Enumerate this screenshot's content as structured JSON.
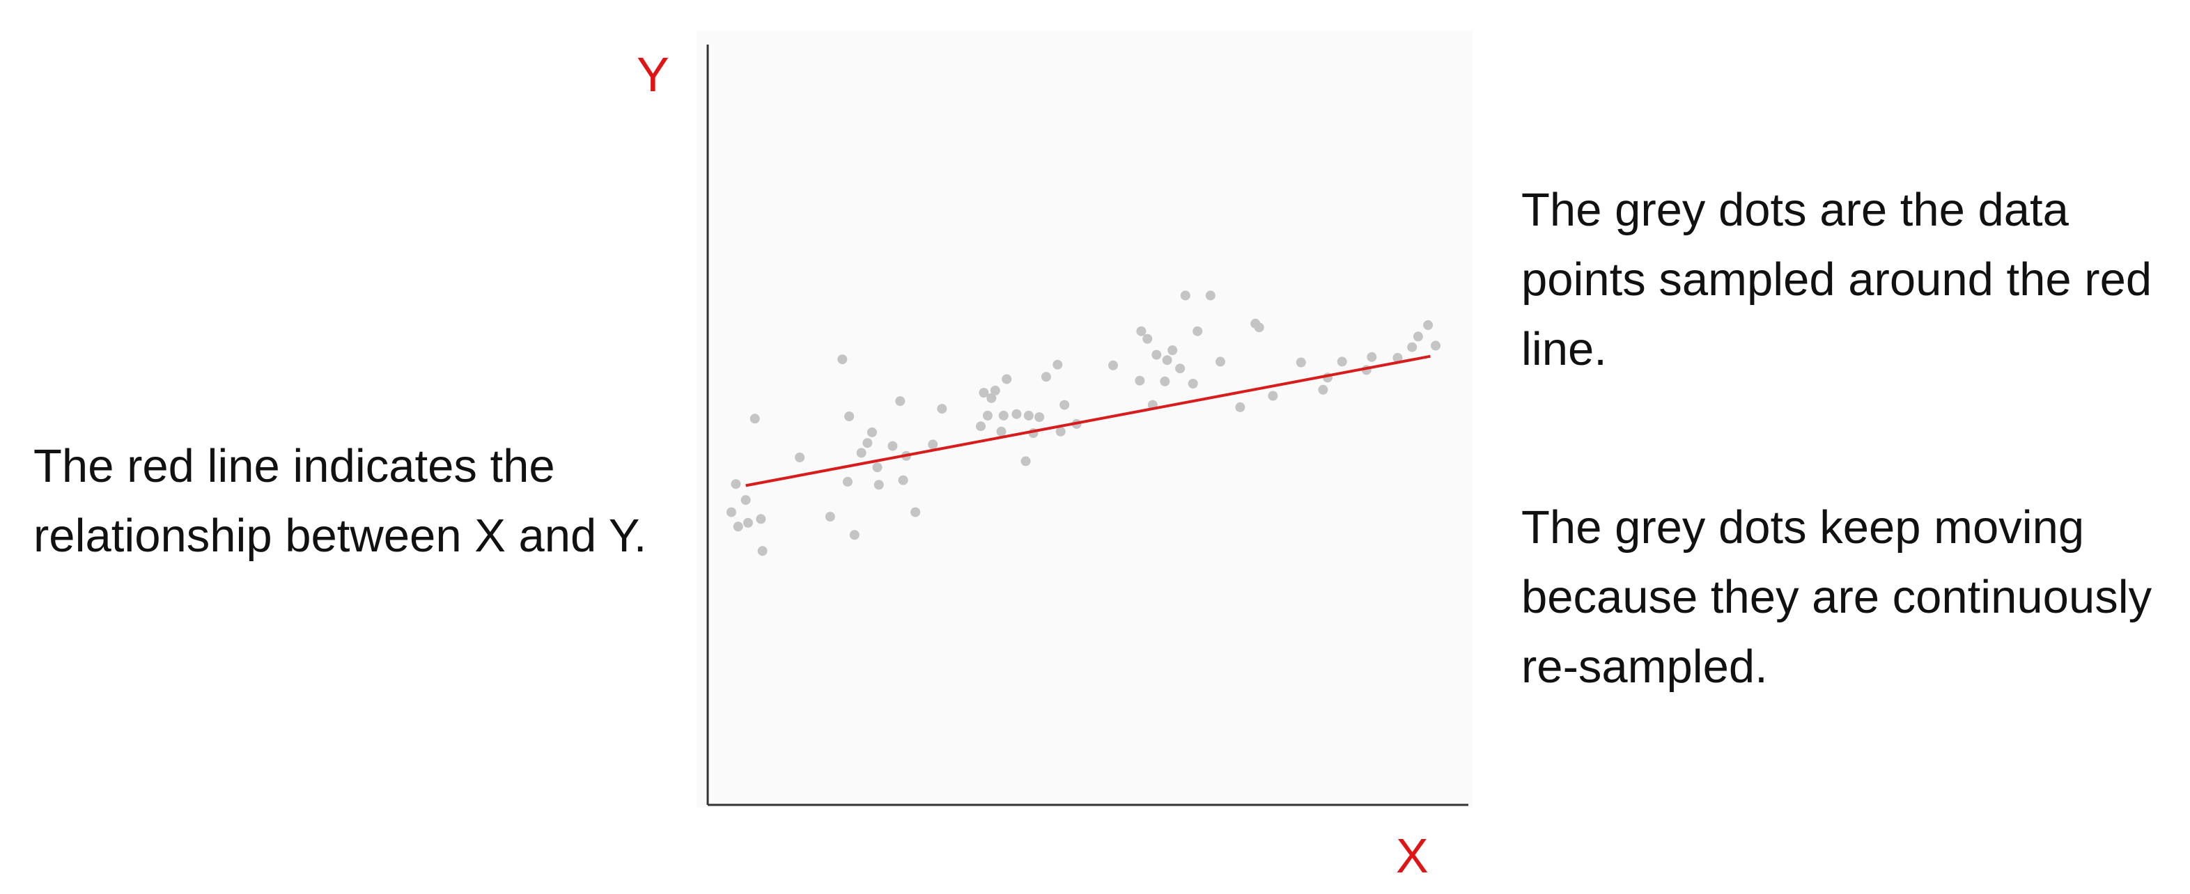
{
  "annotations": {
    "left": "The red line indicates the relationship between X and Y.",
    "right_top": "The grey dots are the data points sampled around the red line.",
    "right_bottom": "The grey dots keep moving because they are continuously re-sampled."
  },
  "chart_data": {
    "type": "scatter",
    "title": "",
    "xlabel": "X",
    "ylabel": "Y",
    "xlim": [
      0,
      100
    ],
    "ylim": [
      0,
      100
    ],
    "grid": false,
    "legend": "none",
    "tick_labels": false,
    "colors": {
      "points": "#c4c4c4",
      "line": "#d81c1c",
      "axis_labels": "#e01414",
      "axes": "#333333",
      "plot_background": "#fafafa"
    },
    "trend_line": {
      "x": [
        5,
        95
      ],
      "y": [
        42,
        59
      ]
    },
    "series": [
      {
        "x": [
          3.1,
          3.7,
          4.0,
          5.0,
          5.3,
          6.2,
          7.0,
          7.2,
          12.1,
          16.1,
          17.7,
          18.4,
          18.6,
          19.3,
          20.2,
          21.0,
          21.6,
          22.3,
          22.5,
          24.3,
          25.3,
          25.7,
          26.1,
          27.3,
          29.6,
          30.8,
          35.9,
          36.3,
          36.8,
          37.3,
          37.8,
          38.6,
          38.9,
          39.3,
          40.6,
          41.8,
          42.2,
          42.8,
          43.6,
          44.5,
          46.0,
          46.4,
          46.9,
          48.5,
          53.3,
          56.8,
          57.0,
          57.8,
          58.5,
          59.0,
          60.1,
          60.4,
          61.1,
          62.1,
          62.8,
          63.8,
          64.4,
          66.1,
          67.4,
          70.0,
          72.0,
          72.5,
          74.3,
          78.0,
          80.9,
          81.5,
          83.4,
          86.6,
          87.3,
          90.7,
          92.6,
          93.4,
          94.7,
          95.7
        ],
        "y": [
          38.5,
          42.2,
          36.6,
          40.1,
          37.1,
          50.8,
          37.6,
          33.4,
          45.7,
          37.9,
          58.6,
          42.5,
          51.1,
          35.5,
          46.3,
          47.6,
          49.0,
          44.4,
          42.1,
          47.2,
          53.1,
          42.7,
          45.9,
          38.5,
          47.4,
          52.1,
          49.8,
          54.2,
          51.2,
          53.5,
          54.5,
          49.1,
          51.2,
          56.0,
          51.4,
          45.2,
          51.2,
          48.9,
          51.0,
          56.3,
          57.9,
          49.1,
          52.6,
          50.1,
          57.8,
          55.8,
          62.3,
          61.3,
          52.6,
          59.2,
          55.7,
          58.5,
          59.8,
          57.4,
          67.0,
          55.4,
          62.3,
          67.0,
          58.3,
          52.3,
          63.3,
          62.8,
          53.8,
          58.2,
          54.6,
          56.2,
          58.3,
          57.2,
          58.9,
          58.8,
          60.2,
          61.6,
          63.1,
          60.4
        ]
      }
    ]
  }
}
